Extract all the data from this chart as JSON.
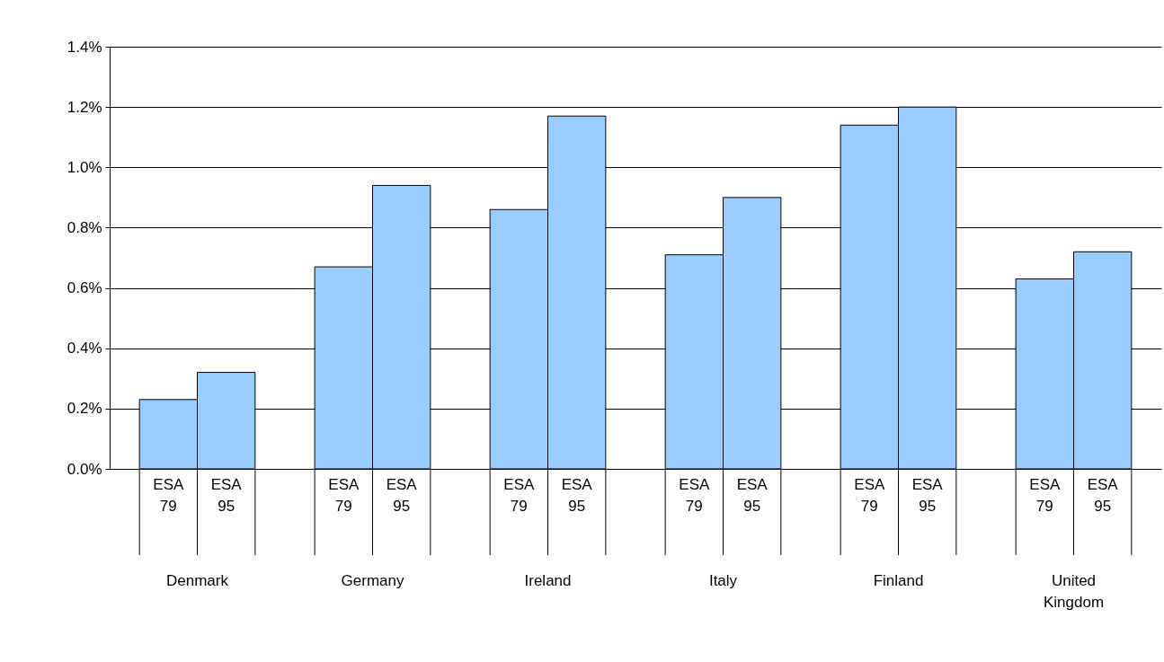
{
  "chart_data": {
    "type": "bar",
    "categories": [
      "Denmark",
      "Germany",
      "Ireland",
      "Italy",
      "Finland",
      "United Kingdom"
    ],
    "series": [
      {
        "name": "ESA 79",
        "color": "#99ccff",
        "values": [
          0.23,
          0.67,
          0.86,
          0.71,
          1.14,
          0.63
        ]
      },
      {
        "name": "ESA 95",
        "color": "#99ccff",
        "values": [
          0.32,
          0.94,
          1.17,
          0.9,
          1.2,
          0.72
        ]
      }
    ],
    "ylim": [
      0,
      1.4
    ],
    "yticks": [
      {
        "value": 0,
        "label": "0.0%"
      },
      {
        "value": 0.2,
        "label": "0.2%"
      },
      {
        "value": 0.4,
        "label": "0.4%"
      },
      {
        "value": 0.6,
        "label": "0.6%"
      },
      {
        "value": 0.8,
        "label": "0.8%"
      },
      {
        "value": 1,
        "label": "1.0%"
      },
      {
        "value": 1.2,
        "label": "1.2%"
      },
      {
        "value": 1.4,
        "label": "1.4%"
      }
    ],
    "grid": "y"
  }
}
